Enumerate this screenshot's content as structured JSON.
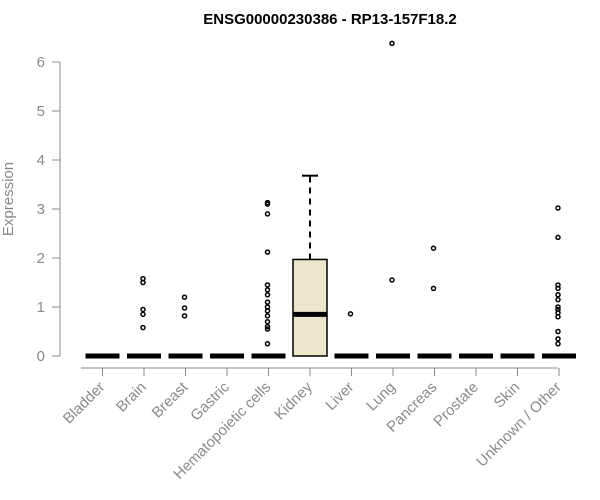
{
  "chart_data": {
    "type": "box",
    "title": "ENSG00000230386 - RP13-157F18.2",
    "ylabel": "Expression",
    "xlabel": "",
    "ylim": [
      0,
      6.5
    ],
    "yticks": [
      0,
      1,
      2,
      3,
      4,
      5,
      6
    ],
    "categories": [
      "Bladder",
      "Brain",
      "Breast",
      "Gastric",
      "Hematopoietic cells",
      "Kidney",
      "Liver",
      "Lung",
      "Pancreas",
      "Prostate",
      "Skin",
      "Unknown / Other"
    ],
    "boxes": [
      {
        "category": "Bladder",
        "q1": 0,
        "median": 0,
        "q3": 0,
        "whisker_low": 0,
        "whisker_high": 0,
        "outliers": []
      },
      {
        "category": "Brain",
        "q1": 0,
        "median": 0,
        "q3": 0,
        "whisker_low": 0,
        "whisker_high": 0,
        "outliers": [
          1.58,
          1.5,
          0.95,
          0.85,
          0.58
        ]
      },
      {
        "category": "Breast",
        "q1": 0,
        "median": 0,
        "q3": 0,
        "whisker_low": 0,
        "whisker_high": 0,
        "outliers": [
          1.2,
          0.98,
          0.82
        ]
      },
      {
        "category": "Gastric",
        "q1": 0,
        "median": 0,
        "q3": 0,
        "whisker_low": 0,
        "whisker_high": 0,
        "outliers": []
      },
      {
        "category": "Hematopoietic cells",
        "q1": 0,
        "median": 0,
        "q3": 0,
        "whisker_low": 0,
        "whisker_high": 0,
        "outliers": [
          3.13,
          3.1,
          2.9,
          2.12,
          1.45,
          1.35,
          1.25,
          1.1,
          1.0,
          0.92,
          0.82,
          0.7,
          0.6,
          0.55,
          0.25
        ]
      },
      {
        "category": "Kidney",
        "q1": 0,
        "median": 0.85,
        "q3": 1.97,
        "whisker_low": 0,
        "whisker_high": 3.68,
        "outliers": []
      },
      {
        "category": "Liver",
        "q1": 0,
        "median": 0,
        "q3": 0,
        "whisker_low": 0,
        "whisker_high": 0,
        "outliers": [
          0.86
        ]
      },
      {
        "category": "Lung",
        "q1": 0,
        "median": 0,
        "q3": 0,
        "whisker_low": 0,
        "whisker_high": 0,
        "outliers": [
          6.38,
          1.55
        ]
      },
      {
        "category": "Pancreas",
        "q1": 0,
        "median": 0,
        "q3": 0,
        "whisker_low": 0,
        "whisker_high": 0,
        "outliers": [
          2.2,
          1.38
        ]
      },
      {
        "category": "Prostate",
        "q1": 0,
        "median": 0,
        "q3": 0,
        "whisker_low": 0,
        "whisker_high": 0,
        "outliers": []
      },
      {
        "category": "Skin",
        "q1": 0,
        "median": 0,
        "q3": 0,
        "whisker_low": 0,
        "whisker_high": 0,
        "outliers": []
      },
      {
        "category": "Unknown / Other",
        "q1": 0,
        "median": 0,
        "q3": 0,
        "whisker_low": 0,
        "whisker_high": 0,
        "outliers": [
          3.02,
          2.42,
          1.45,
          1.38,
          1.25,
          1.15,
          1.0,
          0.95,
          0.88,
          0.8,
          0.5,
          0.35,
          0.25
        ]
      }
    ],
    "colors": {
      "box_fill": "#ece6cd",
      "box_stroke": "#000000",
      "axis": "#8a8a8a",
      "title": "#000000"
    },
    "grid": false,
    "legend": "none"
  }
}
